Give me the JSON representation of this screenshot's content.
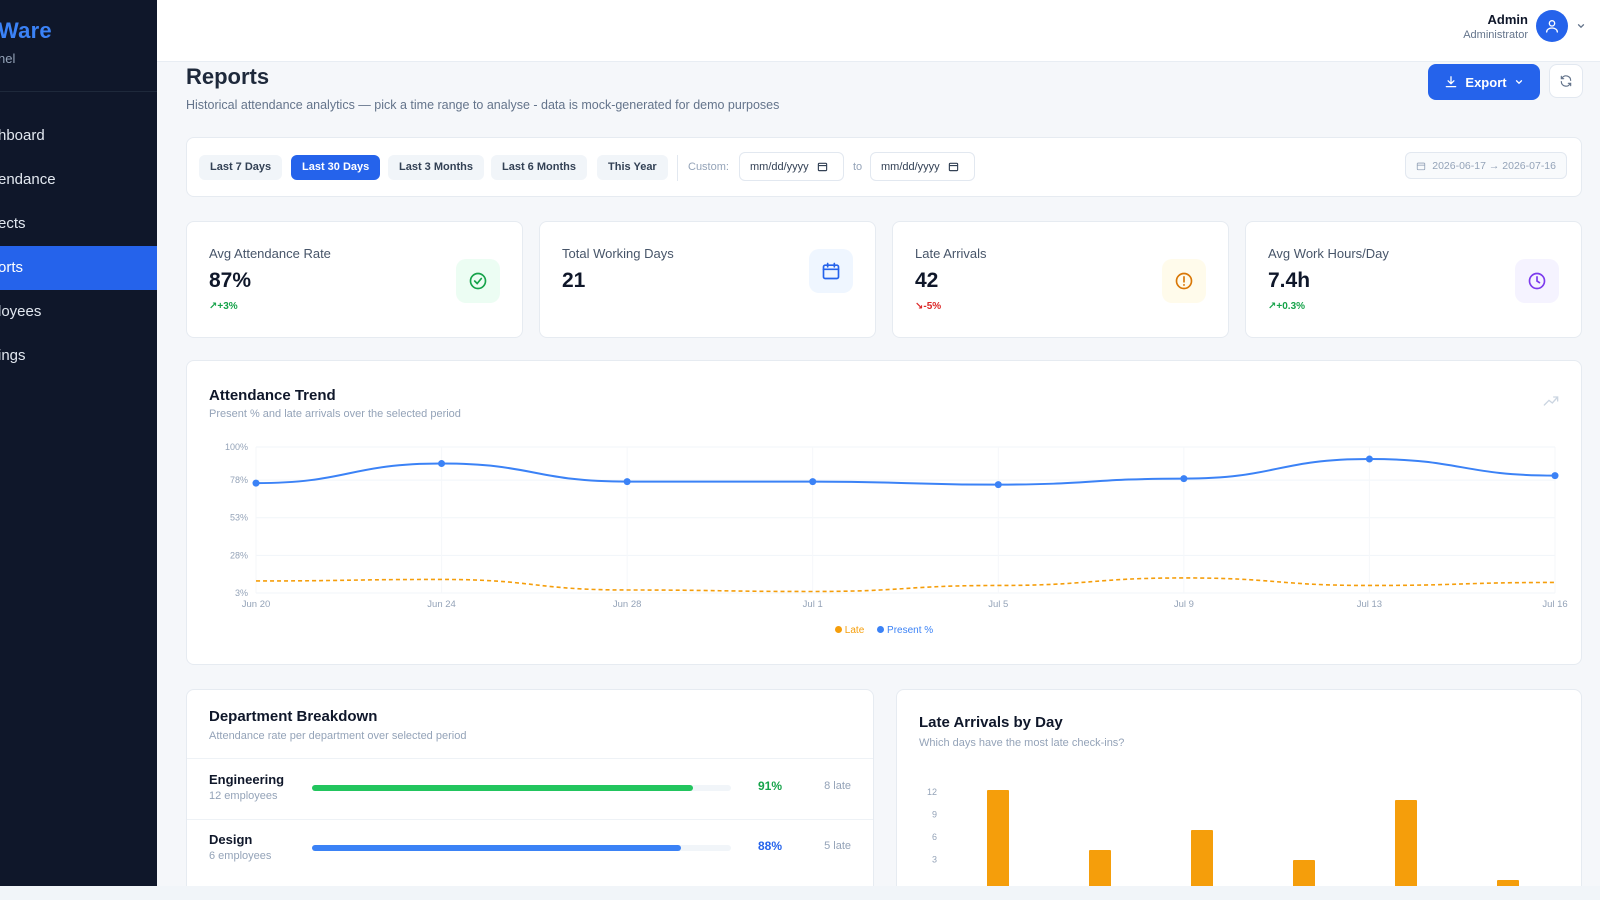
{
  "brand": {
    "name": "Ware",
    "subtitle": "nel"
  },
  "sidebar": {
    "items": [
      {
        "label": "hboard",
        "active": false
      },
      {
        "label": "endance",
        "active": false
      },
      {
        "label": "ects",
        "active": false
      },
      {
        "label": "orts",
        "active": true
      },
      {
        "label": "loyees",
        "active": false
      },
      {
        "label": "ings",
        "active": false
      }
    ]
  },
  "user": {
    "name": "Admin",
    "role": "Administrator",
    "icon": "user-icon"
  },
  "page": {
    "title": "Reports",
    "description": "Historical attendance analytics — pick a time range to analyse - data is mock-generated for demo purposes",
    "export_label": "Export"
  },
  "filters": {
    "ranges": [
      "Last 7 Days",
      "Last 30 Days",
      "Last 3 Months",
      "Last 6 Months",
      "This Year"
    ],
    "active_range": "Last 30 Days",
    "custom_label": "Custom:",
    "from_placeholder": "mm/dd/yyyy",
    "to_label": "to",
    "to_placeholder": "mm/dd/yyyy",
    "range_display": "2026-06-17 → 2026-07-16"
  },
  "stats": [
    {
      "label": "Avg Attendance Rate",
      "value": "87%",
      "delta": "+3%",
      "trend": "up",
      "icon": "check-circle-icon",
      "color": "#16a34a",
      "bg": "#ecfdf3"
    },
    {
      "label": "Total Working Days",
      "value": "21",
      "delta": "",
      "trend": "",
      "icon": "calendar-icon",
      "color": "#2563eb",
      "bg": "#eff6ff"
    },
    {
      "label": "Late Arrivals",
      "value": "42",
      "delta": "-5%",
      "trend": "down",
      "icon": "alert-circle-icon",
      "color": "#d97706",
      "bg": "#fffbeb"
    },
    {
      "label": "Avg Work Hours/Day",
      "value": "7.4h",
      "delta": "+0.3%",
      "trend": "up",
      "icon": "clock-icon",
      "color": "#7c3aed",
      "bg": "#f5f3ff"
    }
  ],
  "trend": {
    "title": "Attendance Trend",
    "subtitle": "Present % and late arrivals over the selected period",
    "legend_late": "Late",
    "legend_present": "Present %"
  },
  "departments": {
    "title": "Department Breakdown",
    "subtitle": "Attendance rate per department over selected period",
    "rows": [
      {
        "name": "Engineering",
        "employees": "12 employees",
        "rate": 0.91,
        "pct": "91%",
        "late": "8 late",
        "color": "#22c55e",
        "text_color": "#16a34a"
      },
      {
        "name": "Design",
        "employees": "6 employees",
        "rate": 0.88,
        "pct": "88%",
        "late": "5 late",
        "color": "#3b82f6",
        "text_color": "#2563eb"
      }
    ]
  },
  "late_by_day": {
    "title": "Late Arrivals by Day",
    "subtitle": "Which days have the most late check-ins?"
  },
  "chart_data": [
    {
      "type": "line",
      "title": "Attendance Trend",
      "x": [
        "Jun 20",
        "Jun 24",
        "Jun 28",
        "Jul 1",
        "Jul 5",
        "Jul 9",
        "Jul 13",
        "Jul 16"
      ],
      "y_ticks": [
        "100%",
        "78%",
        "53%",
        "28%",
        "3%"
      ],
      "ylim": [
        3,
        100
      ],
      "series": [
        {
          "name": "Present %",
          "color": "#3b82f6",
          "values": [
            76,
            89,
            77,
            77,
            75,
            79,
            92,
            81
          ],
          "style": "solid",
          "markers": true
        },
        {
          "name": "Late",
          "color": "#f59e0b",
          "values": [
            11,
            12,
            5,
            4,
            8,
            13,
            8,
            10
          ],
          "style": "dashed",
          "markers": false
        }
      ],
      "legend": "bottom"
    },
    {
      "type": "bar",
      "title": "Late Arrivals by Day",
      "categories": [
        "",
        "",
        "",
        "",
        "",
        ""
      ],
      "values": [
        11,
        5,
        7,
        4,
        10,
        2
      ],
      "y_ticks": [
        "12",
        "9",
        "6",
        "3"
      ],
      "ylim": [
        0,
        12
      ],
      "color": "#f59e0b"
    }
  ]
}
